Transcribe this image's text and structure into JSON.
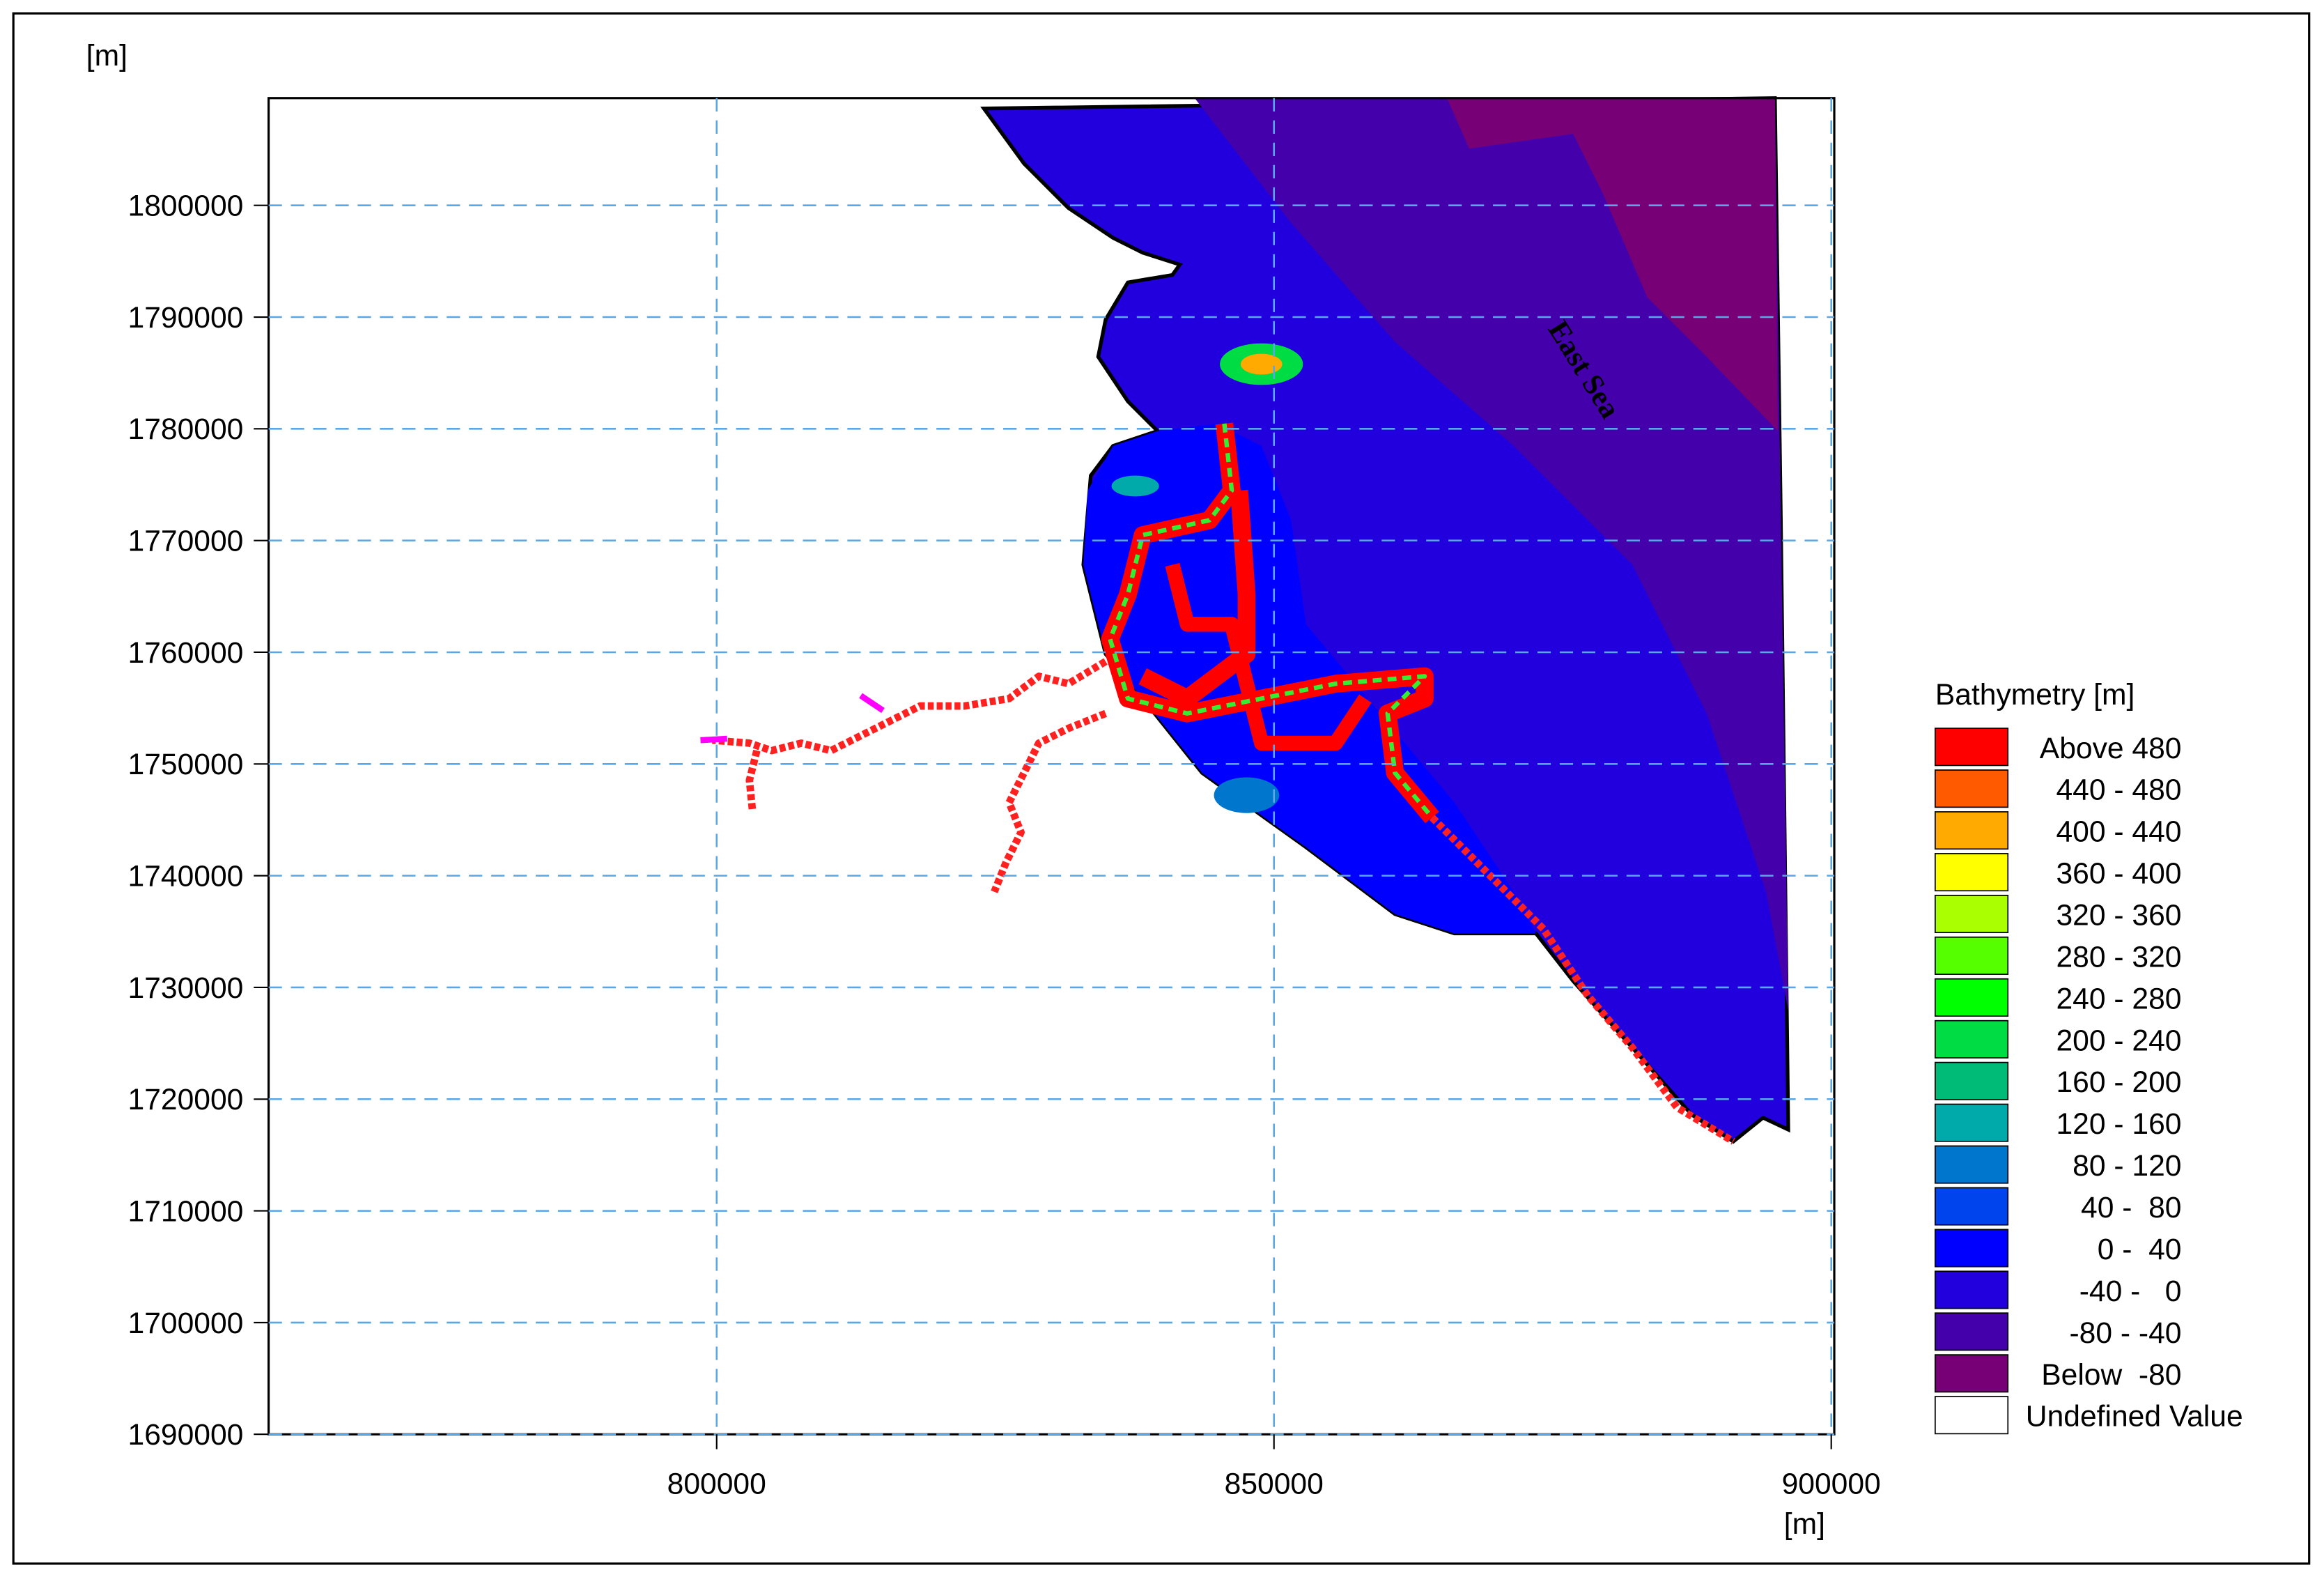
{
  "chart_data": {
    "type": "map",
    "ylabel": "[m]",
    "xlabel": "[m]",
    "xlim": [
      759800,
      900270
    ],
    "ylim": [
      1690000,
      1809600
    ],
    "xticks": [
      800000,
      850000,
      900000
    ],
    "yticks": [
      1690000,
      1700000,
      1710000,
      1720000,
      1730000,
      1740000,
      1750000,
      1760000,
      1770000,
      1780000,
      1790000,
      1800000
    ],
    "grid": true,
    "annotation": "East Sea",
    "legend": {
      "title": "Bathymetry [m]",
      "position": "right",
      "items": [
        {
          "label": "Above 480",
          "color": "#ff0000"
        },
        {
          "label": "440 - 480",
          "color": "#ff5a00"
        },
        {
          "label": "400 - 440",
          "color": "#ffaa00"
        },
        {
          "label": "360 - 400",
          "color": "#ffff00"
        },
        {
          "label": "320 - 360",
          "color": "#aaff00"
        },
        {
          "label": "280 - 320",
          "color": "#55ff00"
        },
        {
          "label": "240 - 280",
          "color": "#00ff00"
        },
        {
          "label": "200 - 240",
          "color": "#00dd44"
        },
        {
          "label": "160 - 200",
          "color": "#00bb77"
        },
        {
          "label": "120 - 160",
          "color": "#00aaaa"
        },
        {
          "label": "80 - 120",
          "color": "#0077cc"
        },
        {
          "label": "40 -  80",
          "color": "#0044ee"
        },
        {
          "label": "0 -  40",
          "color": "#0000ff"
        },
        {
          "label": "-40 -   0",
          "color": "#2200dd"
        },
        {
          "label": "-80 - -40",
          "color": "#4400aa"
        },
        {
          "label": "Below  -80",
          "color": "#770077"
        },
        {
          "label": "Undefined Value",
          "color": "#ffffff"
        }
      ]
    }
  }
}
